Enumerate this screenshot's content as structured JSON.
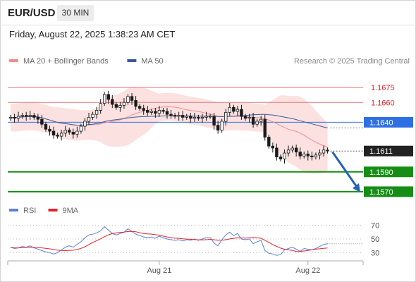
{
  "header": {
    "symbol": "EUR/USD",
    "timeframe": "30 MIN",
    "datetime": "Friday, August 22, 2025 1:38:23 AM CET"
  },
  "chart_data": [
    {
      "type": "candlestick",
      "legend": [
        {
          "name": "MA 20 + Bollinger Bands",
          "color": "#f28c8c"
        },
        {
          "name": "MA 50",
          "color": "#3a5b9a"
        }
      ],
      "copyright": "Research © 2025 Trading Central",
      "current_price": "1.1611",
      "ylim": [
        1.156,
        1.1695
      ],
      "levels": [
        {
          "label": "1.1675",
          "value": 1.1675,
          "kind": "resistance",
          "color": "#e8787a"
        },
        {
          "label": "1.1660",
          "value": 1.166,
          "kind": "resistance",
          "color": "#e8787a"
        },
        {
          "label": "1.1640",
          "value": 1.164,
          "kind": "pivot",
          "color": "#3471e0"
        },
        {
          "label": "1.1590",
          "value": 1.159,
          "kind": "support",
          "color": "#168e16"
        },
        {
          "label": "1.1570",
          "value": 1.157,
          "kind": "support",
          "color": "#168e16"
        }
      ],
      "projection": {
        "from": 1.161,
        "to": 1.157,
        "color": "#2563b4"
      },
      "x_tick_labels": [
        {
          "label": "Aug 21",
          "index": 38
        },
        {
          "label": "Aug 22",
          "index": 76
        }
      ],
      "close": [
        1.1645,
        1.1644,
        1.1646,
        1.1647,
        1.1646,
        1.1647,
        1.1645,
        1.1643,
        1.1638,
        1.1633,
        1.1631,
        1.1627,
        1.1626,
        1.1629,
        1.1632,
        1.163,
        1.1628,
        1.1631,
        1.1636,
        1.1641,
        1.1645,
        1.1648,
        1.1652,
        1.1659,
        1.1668,
        1.1663,
        1.1658,
        1.1655,
        1.1657,
        1.166,
        1.1666,
        1.1662,
        1.1656,
        1.1654,
        1.1652,
        1.165,
        1.1651,
        1.1649,
        1.1652,
        1.1651,
        1.1648,
        1.1647,
        1.1646,
        1.1647,
        1.1645,
        1.1646,
        1.1644,
        1.1645,
        1.1644,
        1.1645,
        1.1646,
        1.1646,
        1.1637,
        1.1632,
        1.1641,
        1.165,
        1.1655,
        1.1651,
        1.1653,
        1.1646,
        1.1644,
        1.1645,
        1.1638,
        1.1641,
        1.1643,
        1.1625,
        1.1616,
        1.1614,
        1.1605,
        1.1603,
        1.1609,
        1.1612,
        1.1614,
        1.161,
        1.1606,
        1.1608,
        1.1606,
        1.1605,
        1.1607,
        1.1609,
        1.1612,
        1.1611
      ],
      "series": [
        {
          "name": "RSI",
          "color": "#5b7fd9"
        },
        {
          "name": "9MA",
          "color": "#e0252b"
        }
      ],
      "rsi": [
        38,
        36,
        37,
        39,
        38,
        40,
        37,
        35,
        33,
        31,
        30,
        28,
        30,
        34,
        38,
        40,
        38,
        42,
        46,
        52,
        56,
        57,
        59,
        62,
        68,
        63,
        58,
        56,
        58,
        60,
        65,
        61,
        57,
        55,
        53,
        52,
        53,
        51,
        54,
        52,
        50,
        49,
        48,
        49,
        47,
        49,
        48,
        50,
        48,
        50,
        52,
        52,
        44,
        40,
        49,
        56,
        60,
        55,
        58,
        50,
        49,
        50,
        43,
        46,
        48,
        33,
        29,
        28,
        26,
        27,
        34,
        36,
        38,
        35,
        32,
        36,
        35,
        34,
        36,
        39,
        42,
        43
      ],
      "rsi_ticks": [
        70,
        50,
        30
      ]
    }
  ]
}
